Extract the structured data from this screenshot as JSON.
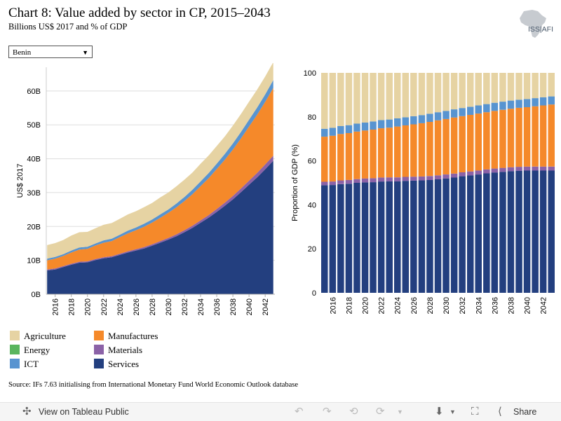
{
  "header": {
    "title": "Chart 8: Value added by sector in CP, 2015–2043",
    "subtitle": "Billions US$ 2017 and % of GDP",
    "logo_text": "ISS|AFI"
  },
  "country_select": {
    "value": "Benin"
  },
  "legend": {
    "items": [
      {
        "label": "Agriculture",
        "color": "#e6d3a3"
      },
      {
        "label": "Energy",
        "color": "#59b55e"
      },
      {
        "label": "ICT",
        "color": "#5894d0"
      },
      {
        "label": "Manufactures",
        "color": "#f5892a"
      },
      {
        "label": "Materials",
        "color": "#8b62a7"
      },
      {
        "label": "Services",
        "color": "#233f7f"
      }
    ]
  },
  "source": "Source: IFs 7.63 initialising from International Monetary Fund World Economic Outlook database",
  "toolbar": {
    "view_label": "View on Tableau Public",
    "share_label": "Share"
  },
  "chart_data": [
    {
      "type": "area",
      "stacked": true,
      "ylabel": "US$ 2017",
      "ylim": [
        0,
        67
      ],
      "yticks": [
        0,
        10,
        20,
        30,
        40,
        50,
        60
      ],
      "ytick_labels": [
        "0B",
        "10B",
        "20B",
        "30B",
        "40B",
        "50B",
        "60B"
      ],
      "xticks": [
        2016,
        2018,
        2020,
        2022,
        2024,
        2026,
        2028,
        2030,
        2032,
        2034,
        2036,
        2038,
        2040,
        2042
      ],
      "x": [
        2015,
        2016,
        2017,
        2018,
        2019,
        2020,
        2021,
        2022,
        2023,
        2024,
        2025,
        2026,
        2027,
        2028,
        2029,
        2030,
        2031,
        2032,
        2033,
        2034,
        2035,
        2036,
        2037,
        2038,
        2039,
        2040,
        2041,
        2042,
        2043
      ],
      "series": [
        {
          "name": "Services",
          "values": [
            7,
            7.3,
            8,
            8.7,
            9.3,
            9.4,
            10.1,
            10.6,
            10.9,
            11.6,
            12.3,
            12.9,
            13.5,
            14.3,
            15.2,
            16.1,
            17.1,
            18.3,
            19.6,
            21.1,
            22.6,
            24.3,
            26.1,
            28.0,
            30.1,
            32.3,
            34.5,
            36.9,
            39.4
          ]
        },
        {
          "name": "Materials",
          "values": [
            0.3,
            0.3,
            0.3,
            0.3,
            0.3,
            0.3,
            0.3,
            0.3,
            0.3,
            0.35,
            0.35,
            0.4,
            0.4,
            0.45,
            0.45,
            0.5,
            0.55,
            0.6,
            0.65,
            0.7,
            0.75,
            0.85,
            0.9,
            1.0,
            1.1,
            1.2,
            1.3,
            1.4,
            1.5
          ]
        },
        {
          "name": "Manufactures",
          "values": [
            2.7,
            2.9,
            3.0,
            3.3,
            3.6,
            3.7,
            4.0,
            4.3,
            4.5,
            4.9,
            5.3,
            5.6,
            6.0,
            6.4,
            6.9,
            7.4,
            8.0,
            8.6,
            9.3,
            10.1,
            10.9,
            11.8,
            12.7,
            13.7,
            14.8,
            16.0,
            17.2,
            18.5,
            20.0
          ]
        },
        {
          "name": "Energy",
          "values": [
            0,
            0,
            0,
            0,
            0,
            0,
            0,
            0,
            0,
            0,
            0,
            0,
            0,
            0,
            0,
            0,
            0,
            0,
            0,
            0,
            0,
            0,
            0,
            0,
            0,
            0,
            0,
            0,
            0
          ]
        },
        {
          "name": "ICT",
          "values": [
            0.5,
            0.5,
            0.5,
            0.6,
            0.6,
            0.6,
            0.6,
            0.7,
            0.7,
            0.7,
            0.8,
            0.8,
            0.9,
            0.9,
            1.0,
            1.0,
            1.1,
            1.2,
            1.3,
            1.4,
            1.5,
            1.6,
            1.7,
            1.8,
            1.9,
            2.0,
            2.1,
            2.2,
            2.3
          ]
        },
        {
          "name": "Agriculture",
          "values": [
            4.0,
            4.1,
            4.2,
            4.4,
            4.5,
            4.4,
            4.5,
            4.6,
            4.6,
            4.7,
            4.8,
            4.8,
            4.9,
            4.9,
            5.0,
            5.0,
            5.1,
            5.1,
            5.1,
            5.2,
            5.2,
            5.2,
            5.2,
            5.3,
            5.3,
            5.3,
            5.3,
            5.3,
            5.3
          ]
        }
      ]
    },
    {
      "type": "bar",
      "stacked": true,
      "ylabel": "Proportion of GDP (%)",
      "ylim": [
        0,
        100
      ],
      "yticks": [
        0,
        20,
        40,
        60,
        80,
        100
      ],
      "xticks": [
        2016,
        2018,
        2020,
        2022,
        2024,
        2026,
        2028,
        2030,
        2032,
        2034,
        2036,
        2038,
        2040,
        2042
      ],
      "categories": [
        2015,
        2016,
        2017,
        2018,
        2019,
        2020,
        2021,
        2022,
        2023,
        2024,
        2025,
        2026,
        2027,
        2028,
        2029,
        2030,
        2031,
        2032,
        2033,
        2034,
        2035,
        2036,
        2037,
        2038,
        2039,
        2040,
        2041,
        2042,
        2043
      ],
      "series": [
        {
          "name": "Services",
          "values": [
            48.9,
            49.0,
            49.4,
            49.6,
            50.0,
            50.2,
            50.3,
            50.6,
            50.7,
            50.7,
            50.9,
            51.0,
            51.1,
            51.3,
            51.6,
            52.0,
            52.4,
            53.0,
            53.4,
            53.8,
            54.3,
            54.7,
            55.0,
            55.3,
            55.5,
            55.6,
            55.6,
            55.6,
            55.6
          ]
        },
        {
          "name": "Materials",
          "values": [
            1.6,
            1.6,
            1.7,
            1.7,
            1.7,
            1.8,
            1.8,
            1.8,
            1.8,
            1.8,
            1.8,
            1.8,
            1.8,
            1.8,
            1.8,
            1.8,
            1.8,
            1.8,
            1.8,
            1.8,
            1.8,
            1.8,
            1.8,
            1.8,
            1.8,
            1.8,
            1.8,
            1.8,
            1.8
          ]
        },
        {
          "name": "Manufactures",
          "values": [
            20.5,
            20.8,
            21.1,
            21.3,
            21.6,
            21.8,
            22.1,
            22.4,
            22.6,
            23.1,
            23.4,
            23.8,
            24.2,
            24.6,
            25.0,
            25.2,
            25.5,
            25.5,
            25.7,
            25.9,
            26.0,
            26.2,
            26.4,
            26.6,
            26.8,
            27.0,
            27.4,
            27.8,
            28.2
          ]
        },
        {
          "name": "Energy",
          "values": [
            0,
            0,
            0,
            0,
            0,
            0,
            0,
            0,
            0,
            0,
            0,
            0,
            0,
            0,
            0,
            0,
            0,
            0,
            0,
            0,
            0,
            0,
            0,
            0,
            0,
            0,
            0,
            0,
            0
          ]
        },
        {
          "name": "ICT",
          "values": [
            3.6,
            3.6,
            3.6,
            3.6,
            3.6,
            3.6,
            3.7,
            3.7,
            3.7,
            3.7,
            3.7,
            3.7,
            3.7,
            3.7,
            3.7,
            3.7,
            3.7,
            3.7,
            3.7,
            3.7,
            3.7,
            3.7,
            3.7,
            3.7,
            3.7,
            3.7,
            3.7,
            3.7,
            3.7
          ]
        },
        {
          "name": "Agriculture",
          "values": [
            25.4,
            25.0,
            24.2,
            23.8,
            23.1,
            22.6,
            22.1,
            21.5,
            21.2,
            20.7,
            20.2,
            19.7,
            19.2,
            18.6,
            17.9,
            17.3,
            16.6,
            16.0,
            15.4,
            14.8,
            14.2,
            13.6,
            13.1,
            12.6,
            12.2,
            11.9,
            11.5,
            11.1,
            10.7
          ]
        }
      ]
    }
  ]
}
